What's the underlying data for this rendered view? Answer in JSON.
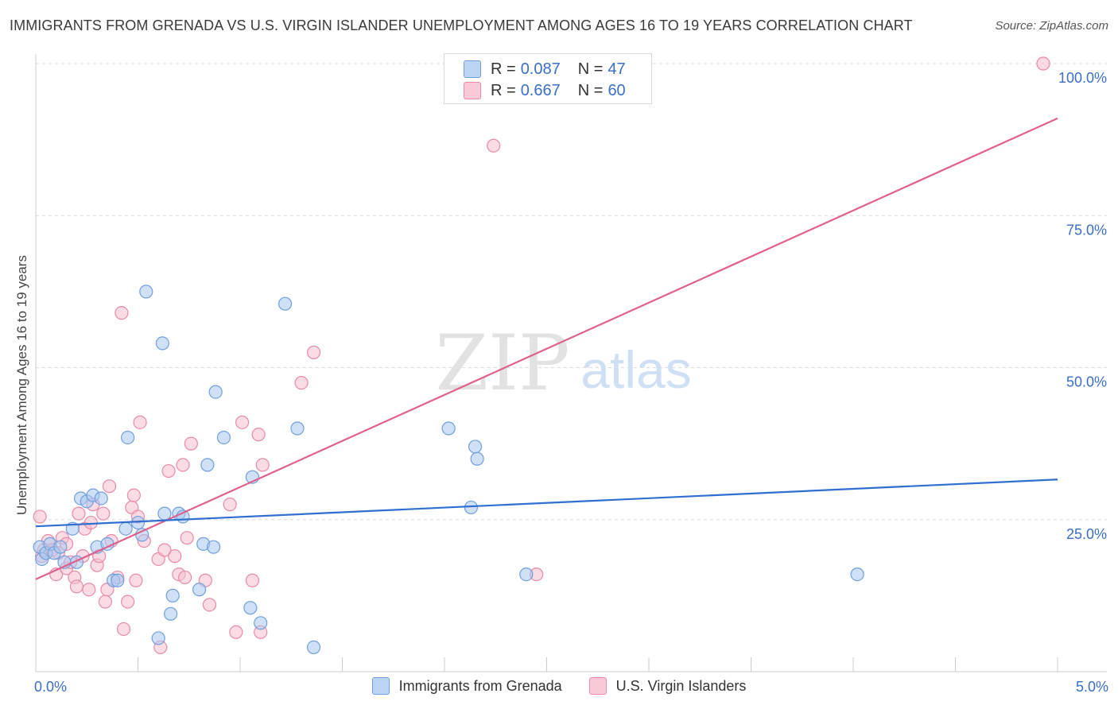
{
  "header": {
    "title": "IMMIGRANTS FROM GRENADA VS U.S. VIRGIN ISLANDER UNEMPLOYMENT AMONG AGES 16 TO 19 YEARS CORRELATION CHART",
    "source": "Source: ZipAtlas.com"
  },
  "stats": [
    {
      "r_label": "R =",
      "r_value": "0.087",
      "n_label": "N =",
      "n_value": "47",
      "color": "#a9c8f0",
      "border": "#6f9fdc"
    },
    {
      "r_label": "R =",
      "r_value": "0.667",
      "n_label": "N =",
      "n_value": "60",
      "color": "#f7bfd0",
      "border": "#e88aa8"
    }
  ],
  "watermark": {
    "zip": "ZIP",
    "atlas": "atlas"
  },
  "colors": {
    "blue_fill": "#a9c8f0",
    "blue_stroke": "#6f9fdc",
    "blue_line": "#2f6fd0",
    "pink_fill": "#f7bfd0",
    "pink_stroke": "#e88aa8",
    "pink_line": "#e0608c",
    "tick_text": "#3a6fc4",
    "grid": "#d9d9d9"
  },
  "chart_data": {
    "type": "scatter",
    "title": "IMMIGRANTS FROM GRENADA VS U.S. VIRGIN ISLANDER UNEMPLOYMENT AMONG AGES 16 TO 19 YEARS CORRELATION CHART",
    "xlabel": "",
    "ylabel": "Unemployment Among Ages 16 to 19 years",
    "xlim": [
      0,
      5
    ],
    "ylim": [
      0,
      100
    ],
    "x_tick_labels": [
      "0.0%",
      "5.0%"
    ],
    "y_tick_labels": [
      "25.0%",
      "50.0%",
      "75.0%",
      "100.0%"
    ],
    "y_tick_values": [
      25,
      50,
      75,
      100
    ],
    "grid": true,
    "legend": [
      "Immigrants from Grenada",
      "U.S. Virgin Islanders"
    ],
    "series": [
      {
        "name": "Immigrants from Grenada",
        "R": 0.087,
        "N": 47,
        "trend": {
          "x": [
            0,
            5
          ],
          "y": [
            23.9,
            31.6
          ]
        },
        "points": [
          [
            0.02,
            20.5
          ],
          [
            0.03,
            18.5
          ],
          [
            0.05,
            19.5
          ],
          [
            0.07,
            21.0
          ],
          [
            0.09,
            19.5
          ],
          [
            0.12,
            20.5
          ],
          [
            0.14,
            18.0
          ],
          [
            0.18,
            23.5
          ],
          [
            0.2,
            18.0
          ],
          [
            0.22,
            28.5
          ],
          [
            0.25,
            28.0
          ],
          [
            0.28,
            29.0
          ],
          [
            0.3,
            20.5
          ],
          [
            0.32,
            28.5
          ],
          [
            0.35,
            21.0
          ],
          [
            0.38,
            15.0
          ],
          [
            0.4,
            15.0
          ],
          [
            0.44,
            23.5
          ],
          [
            0.45,
            38.5
          ],
          [
            0.5,
            24.5
          ],
          [
            0.52,
            22.5
          ],
          [
            0.54,
            62.5
          ],
          [
            0.6,
            5.5
          ],
          [
            0.62,
            54.0
          ],
          [
            0.63,
            26.0
          ],
          [
            0.66,
            9.5
          ],
          [
            0.67,
            12.5
          ],
          [
            0.7,
            26.0
          ],
          [
            0.72,
            25.5
          ],
          [
            0.8,
            13.5
          ],
          [
            0.82,
            21.0
          ],
          [
            0.84,
            34.0
          ],
          [
            0.88,
            46.0
          ],
          [
            0.87,
            20.5
          ],
          [
            0.92,
            38.5
          ],
          [
            1.05,
            10.5
          ],
          [
            1.06,
            32.0
          ],
          [
            1.1,
            8.0
          ],
          [
            1.22,
            60.5
          ],
          [
            1.28,
            40.0
          ],
          [
            1.36,
            4.0
          ],
          [
            2.02,
            40.0
          ],
          [
            2.13,
            27.0
          ],
          [
            2.15,
            37.0
          ],
          [
            2.16,
            35.0
          ],
          [
            2.4,
            16.0
          ],
          [
            4.02,
            16.0
          ]
        ]
      },
      {
        "name": "U.S. Virgin Islanders",
        "R": 0.667,
        "N": 60,
        "trend": {
          "x": [
            0,
            5
          ],
          "y": [
            15.2,
            91.0
          ]
        },
        "points": [
          [
            0.02,
            25.5
          ],
          [
            0.03,
            19.0
          ],
          [
            0.04,
            20.0
          ],
          [
            0.06,
            21.5
          ],
          [
            0.08,
            20.0
          ],
          [
            0.1,
            16.0
          ],
          [
            0.11,
            19.5
          ],
          [
            0.13,
            22.0
          ],
          [
            0.15,
            17.0
          ],
          [
            0.17,
            18.0
          ],
          [
            0.19,
            15.5
          ],
          [
            0.2,
            14.0
          ],
          [
            0.21,
            26.0
          ],
          [
            0.23,
            19.0
          ],
          [
            0.24,
            23.5
          ],
          [
            0.26,
            13.5
          ],
          [
            0.27,
            24.5
          ],
          [
            0.28,
            27.5
          ],
          [
            0.3,
            17.5
          ],
          [
            0.31,
            19.0
          ],
          [
            0.33,
            26.0
          ],
          [
            0.34,
            11.5
          ],
          [
            0.35,
            13.5
          ],
          [
            0.36,
            30.5
          ],
          [
            0.37,
            21.5
          ],
          [
            0.4,
            15.5
          ],
          [
            0.42,
            59.0
          ],
          [
            0.43,
            7.0
          ],
          [
            0.45,
            11.5
          ],
          [
            0.47,
            27.0
          ],
          [
            0.48,
            29.0
          ],
          [
            0.49,
            15.0
          ],
          [
            0.5,
            25.5
          ],
          [
            0.51,
            41.0
          ],
          [
            0.53,
            21.5
          ],
          [
            0.6,
            18.5
          ],
          [
            0.61,
            4.0
          ],
          [
            0.63,
            20.0
          ],
          [
            0.65,
            33.0
          ],
          [
            0.68,
            19.0
          ],
          [
            0.7,
            16.0
          ],
          [
            0.72,
            34.0
          ],
          [
            0.73,
            15.5
          ],
          [
            0.74,
            22.0
          ],
          [
            0.76,
            37.5
          ],
          [
            0.83,
            15.0
          ],
          [
            0.85,
            11.0
          ],
          [
            0.95,
            27.5
          ],
          [
            0.98,
            6.5
          ],
          [
            1.01,
            41.0
          ],
          [
            1.06,
            15.0
          ],
          [
            1.09,
            39.0
          ],
          [
            1.1,
            6.5
          ],
          [
            1.11,
            34.0
          ],
          [
            1.3,
            47.5
          ],
          [
            1.36,
            52.5
          ],
          [
            2.24,
            86.5
          ],
          [
            2.45,
            16.0
          ],
          [
            4.93,
            100.0
          ],
          [
            0.15,
            21.0
          ]
        ]
      }
    ]
  }
}
